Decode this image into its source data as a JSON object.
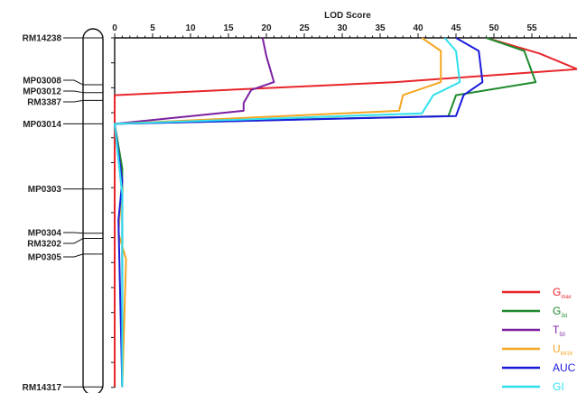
{
  "chart_data": {
    "type": "line",
    "orientation": "vertical-position",
    "title": "",
    "xlabel": "LOD Score",
    "ylabel": "",
    "xticks": [
      0,
      5,
      10,
      15,
      20,
      25,
      30,
      35,
      40,
      45,
      50,
      55
    ],
    "xlim": [
      0,
      60
    ],
    "markers": [
      {
        "name": "RM14238",
        "pos": 0
      },
      {
        "name": "MP03008",
        "pos": 18
      },
      {
        "name": "MP03012",
        "pos": 21
      },
      {
        "name": "RM3387",
        "pos": 24
      },
      {
        "name": "MP03014",
        "pos": 33
      },
      {
        "name": "MP0303",
        "pos": 58
      },
      {
        "name": "MP0304",
        "pos": 75
      },
      {
        "name": "RM3202",
        "pos": 77
      },
      {
        "name": "MP0305",
        "pos": 83
      },
      {
        "name": "RM14317",
        "pos": 134
      }
    ],
    "grid": false,
    "legend_position": "bottom-right",
    "series": [
      {
        "name": "G_max",
        "label": "G",
        "sub": "max",
        "color": "#e8262a",
        "points": [
          [
            49,
            0
          ],
          [
            56,
            6
          ],
          [
            61,
            12
          ],
          [
            37,
            17
          ],
          [
            0,
            22
          ],
          [
            0,
            33
          ],
          [
            0,
            60
          ],
          [
            0,
            134
          ]
        ]
      },
      {
        "name": "G_3d",
        "label": "G",
        "sub": "3d",
        "color": "#1f8a2e",
        "points": [
          [
            49,
            0
          ],
          [
            54,
            5
          ],
          [
            55.5,
            17
          ],
          [
            45,
            22
          ],
          [
            44,
            30
          ],
          [
            0,
            33
          ],
          [
            1,
            50
          ],
          [
            1,
            134
          ]
        ]
      },
      {
        "name": "T_50",
        "label": "T",
        "sub": "50",
        "color": "#7b1fa2",
        "points": [
          [
            19.5,
            0
          ],
          [
            20,
            7
          ],
          [
            21,
            17
          ],
          [
            18,
            20
          ],
          [
            17,
            25
          ],
          [
            17,
            28
          ],
          [
            0,
            33
          ],
          [
            1,
            60
          ],
          [
            1,
            134
          ]
        ]
      },
      {
        "name": "U_8416",
        "label": "U",
        "sub": "8416",
        "color": "#f5a623",
        "points": [
          [
            40.5,
            0
          ],
          [
            43,
            5
          ],
          [
            43,
            17
          ],
          [
            38,
            22
          ],
          [
            37.5,
            28
          ],
          [
            0,
            33
          ],
          [
            1,
            55
          ],
          [
            0.5,
            75
          ],
          [
            1.5,
            85
          ],
          [
            1,
            134
          ]
        ]
      },
      {
        "name": "AUC",
        "label": "AUC",
        "sub": "",
        "color": "#1a1adb",
        "points": [
          [
            45,
            0
          ],
          [
            48,
            5
          ],
          [
            48.5,
            17
          ],
          [
            46,
            22
          ],
          [
            45,
            30
          ],
          [
            0,
            33
          ],
          [
            1,
            55
          ],
          [
            0.5,
            70
          ],
          [
            1,
            134
          ]
        ]
      },
      {
        "name": "GI",
        "label": "GI",
        "sub": "",
        "color": "#2ee0ee",
        "points": [
          [
            43.5,
            0
          ],
          [
            45,
            5
          ],
          [
            45.5,
            17
          ],
          [
            42,
            22
          ],
          [
            40.5,
            29
          ],
          [
            0,
            33
          ],
          [
            1,
            60
          ],
          [
            1,
            134
          ]
        ]
      }
    ]
  }
}
